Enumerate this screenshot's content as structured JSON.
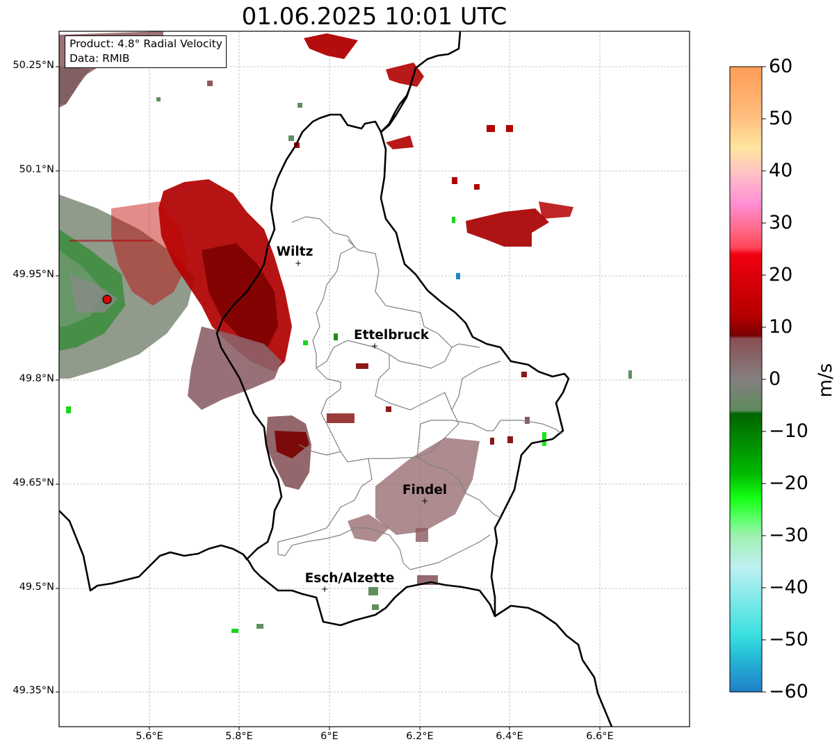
{
  "title": "01.06.2025 10:01 UTC",
  "info": {
    "product": "Product: 4.8° Radial Velocity",
    "data": "Data: RMIB"
  },
  "axes": {
    "y_ticks": [
      "50.25°N",
      "50.1°N",
      "49.95°N",
      "49.8°N",
      "49.65°N",
      "49.5°N",
      "49.35°N"
    ],
    "x_ticks": [
      "5.6°E",
      "5.8°E",
      "6°E",
      "6.2°E",
      "6.4°E",
      "6.6°E"
    ],
    "lon_range": [
      5.4,
      6.8
    ],
    "lat_range": [
      49.3,
      50.3
    ],
    "grid": true
  },
  "cities": [
    {
      "name": "Wiltz",
      "lon": 5.93,
      "lat": 49.97
    },
    {
      "name": "Ettelbruck",
      "lon": 6.1,
      "lat": 49.85
    },
    {
      "name": "Findel",
      "lon": 6.21,
      "lat": 49.63
    },
    {
      "name": "Esch/Alzette",
      "lon": 5.99,
      "lat": 49.5
    }
  ],
  "radar_site": {
    "lon": 5.505,
    "lat": 49.915
  },
  "colorbar": {
    "label": "m/s",
    "min": -60,
    "max": 60,
    "ticks": [
      "60",
      "50",
      "40",
      "30",
      "20",
      "10",
      "0",
      "−10",
      "−20",
      "−30",
      "−40",
      "−50",
      "−60"
    ],
    "colors": [
      "#ffa05a",
      "#ffb978",
      "#ffe29b",
      "#ffc7c0",
      "#ff8fd3",
      "#ff4d6e",
      "#e80012",
      "#a80000",
      "#7a0000",
      "#876b6e",
      "#5f8f5f",
      "#007a00",
      "#00d000",
      "#6bff82",
      "#b7f0f0",
      "#3fe0e0",
      "#1f87c9"
    ]
  }
}
